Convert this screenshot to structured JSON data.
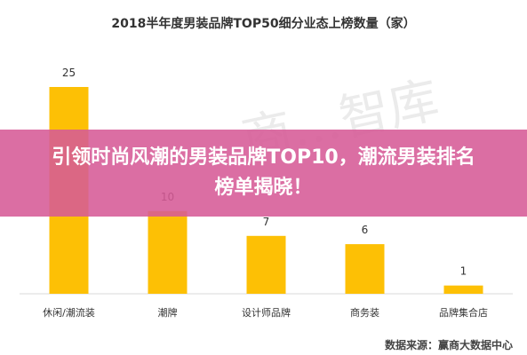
{
  "chart_data": {
    "type": "bar",
    "title": "2018半年度男装品牌TOP50细分业态上榜数量（家）",
    "categories": [
      "休闲/潮流装",
      "潮牌",
      "设计师品牌",
      "商务装",
      "品牌集合店"
    ],
    "values": [
      25,
      10,
      7,
      6,
      1
    ],
    "data_labels": [
      "25",
      "10",
      "7",
      "6",
      "1"
    ],
    "ylim": [
      0,
      25
    ],
    "grid": false,
    "bar_color": "#FDC005",
    "xlabel": "",
    "ylabel": ""
  },
  "watermark": "商…智库",
  "banner": {
    "text": "引领时尚风潮的男装品牌TOP10，潮流男装排名榜单揭晓！",
    "color": "#D65A96"
  },
  "source_note": "数据来源：赢商大数据中心"
}
